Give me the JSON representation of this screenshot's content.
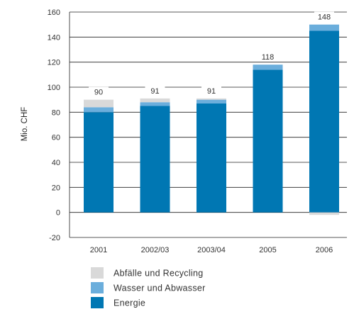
{
  "chart_data": {
    "type": "bar",
    "stacked": true,
    "categories": [
      "2001",
      "2002/03",
      "2003/04",
      "2005",
      "2006"
    ],
    "series": [
      {
        "name": "Energie",
        "color": "#0077B3",
        "values": [
          80,
          85,
          87,
          114,
          145
        ]
      },
      {
        "name": "Wasser und Abwasser",
        "color": "#6BAEDC",
        "values": [
          4,
          3,
          3,
          4,
          5
        ]
      },
      {
        "name": "Abfälle und Recycling",
        "color": "#D9D9D9",
        "values": [
          6,
          3,
          1,
          0,
          0
        ]
      }
    ],
    "negative_component": {
      "name": "Abfälle und Recycling",
      "color": "#D9D9D9",
      "values": [
        0,
        0,
        0,
        0,
        -2
      ]
    },
    "totals": [
      "90",
      "91",
      "91",
      "118",
      "148"
    ],
    "ylabel": "Mio. CHF",
    "ylim": [
      -20,
      160
    ],
    "yticks": [
      "160",
      "140",
      "120",
      "100",
      "80",
      "60",
      "40",
      "20",
      "0",
      "-20"
    ],
    "grid": true,
    "legend_position": "bottom-left",
    "legend": [
      {
        "label": "Abfälle und Recycling",
        "color": "#D9D9D9"
      },
      {
        "label": "Wasser und Abwasser",
        "color": "#6BAEDC"
      },
      {
        "label": "Energie",
        "color": "#0077B3"
      }
    ]
  }
}
